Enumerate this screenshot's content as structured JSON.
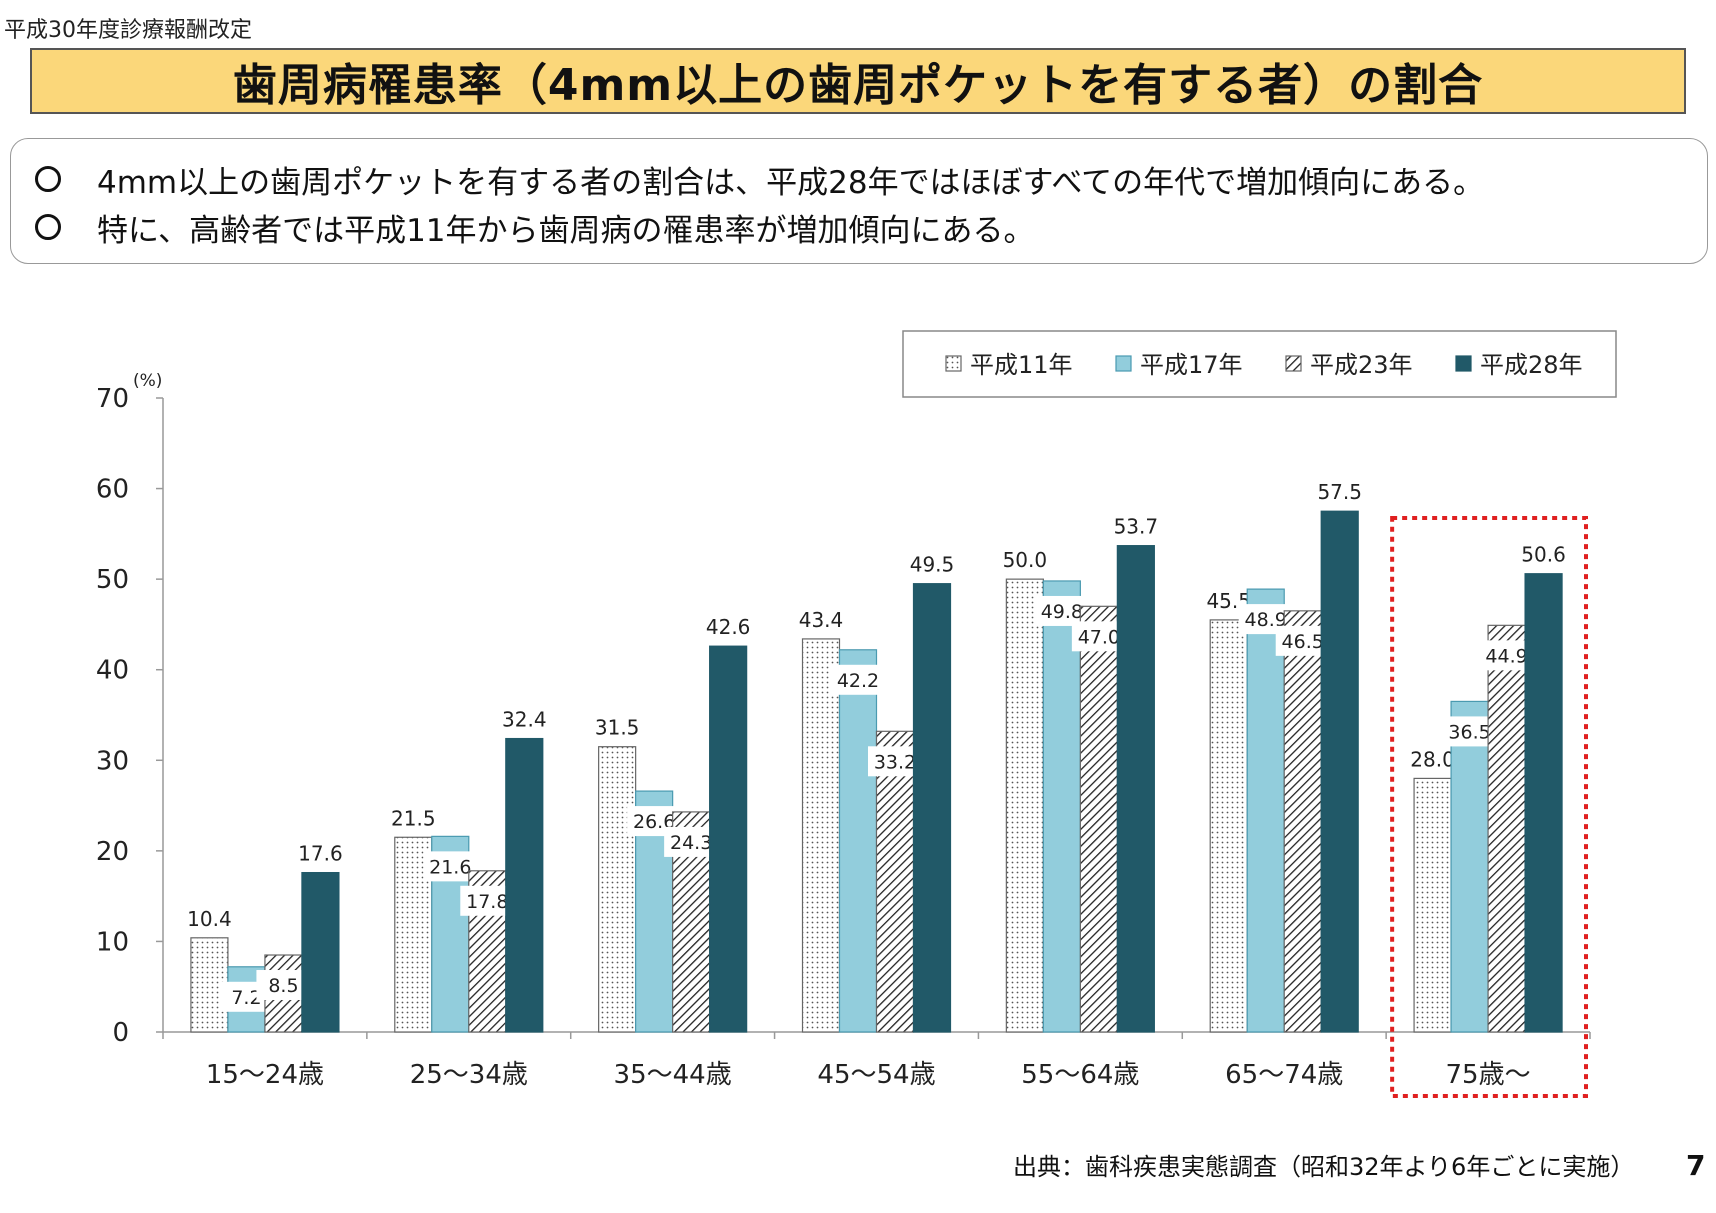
{
  "header": {
    "label": "平成30年度診療報酬改定"
  },
  "title": "歯周病罹患率（4mm以上の歯周ポケットを有する者）の割合",
  "summary": {
    "bullets": [
      "4mm以上の歯周ポケットを有する者の割合は、平成28年ではほぼすべての年代で増加傾向にある。",
      "特に、高齢者では平成11年から歯周病の罹患率が増加傾向にある。"
    ]
  },
  "chart_data": {
    "type": "bar",
    "unit_label": "(%)",
    "ylim": [
      0,
      70
    ],
    "yticks": [
      0,
      10,
      20,
      30,
      40,
      50,
      60,
      70
    ],
    "categories": [
      "15～24歳",
      "25～34歳",
      "35～44歳",
      "45～54歳",
      "55～64歳",
      "65～74歳",
      "75歳～"
    ],
    "series": [
      {
        "name": "平成11年",
        "values": [
          10.4,
          21.5,
          31.5,
          43.4,
          50.0,
          45.5,
          28.0
        ],
        "labels": [
          "10.4",
          "21.5",
          "31.5",
          "43.4",
          "50.0",
          "45.5",
          "28.0"
        ],
        "color": "#ffffff",
        "pattern": "dots"
      },
      {
        "name": "平成17年",
        "values": [
          7.2,
          21.6,
          26.6,
          42.2,
          49.8,
          48.9,
          36.5
        ],
        "labels": [
          "7.2",
          "21.6",
          "26.6",
          "42.2",
          "49.8",
          "48.9",
          "36.5"
        ],
        "color": "#92cddc",
        "pattern": "solid"
      },
      {
        "name": "平成23年",
        "values": [
          8.5,
          17.8,
          24.3,
          33.2,
          47.0,
          46.5,
          44.9
        ],
        "labels": [
          "8.5",
          "17.8",
          "24.3",
          "33.2",
          "47.0",
          "46.5",
          "44.9"
        ],
        "color": "#ffffff",
        "pattern": "diagonal"
      },
      {
        "name": "平成28年",
        "values": [
          17.6,
          32.4,
          42.6,
          49.5,
          53.7,
          57.5,
          50.6
        ],
        "labels": [
          "17.6",
          "32.4",
          "42.6",
          "49.5",
          "53.7",
          "57.5",
          "50.6"
        ],
        "color": "#215968",
        "pattern": "solid"
      }
    ],
    "legend_position": "top-right",
    "highlight_category": "75歳～",
    "highlight_color": "#e02020",
    "grid": false
  },
  "footer": {
    "source": "出典：歯科疾患実態調査（昭和32年より6年ごとに実施）",
    "page_number": "7"
  }
}
